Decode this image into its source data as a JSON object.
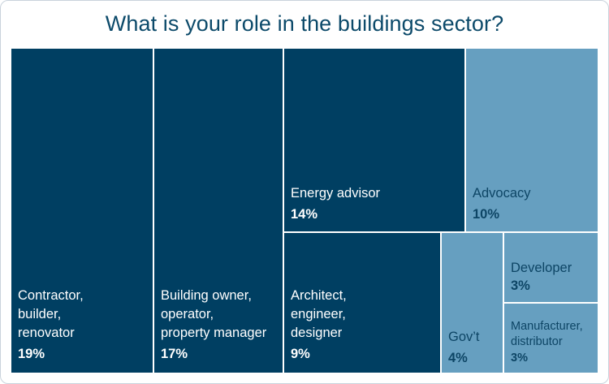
{
  "chart_data": {
    "type": "treemap",
    "title": "What is your role in the buildings sector?",
    "colors": {
      "dark": "#003f62",
      "light": "#669fc0",
      "dark_text": "#ffffff",
      "light_text": "#0d4565",
      "separator": "#ffffff"
    },
    "items": [
      {
        "id": "contractor",
        "label": "Contractor,\nbuilder,\nrenovator",
        "value": 19,
        "value_label": "19%",
        "shade": "dark"
      },
      {
        "id": "owner",
        "label": "Building owner,\noperator,\nproperty manager",
        "value": 17,
        "value_label": "17%",
        "shade": "dark"
      },
      {
        "id": "energy-advisor",
        "label": "Energy advisor",
        "value": 14,
        "value_label": "14%",
        "shade": "dark"
      },
      {
        "id": "advocacy",
        "label": "Advocacy",
        "value": 10,
        "value_label": "10%",
        "shade": "light"
      },
      {
        "id": "architect",
        "label": "Architect,\nengineer,\ndesigner",
        "value": 9,
        "value_label": "9%",
        "shade": "dark"
      },
      {
        "id": "govt",
        "label": "Gov’t",
        "value": 4,
        "value_label": "4%",
        "shade": "light"
      },
      {
        "id": "developer",
        "label": "Developer",
        "value": 3,
        "value_label": "3%",
        "shade": "light"
      },
      {
        "id": "manufacturer",
        "label": "Manufacturer,\ndistributor",
        "value": 3,
        "value_label": "3%",
        "shade": "light"
      }
    ]
  }
}
